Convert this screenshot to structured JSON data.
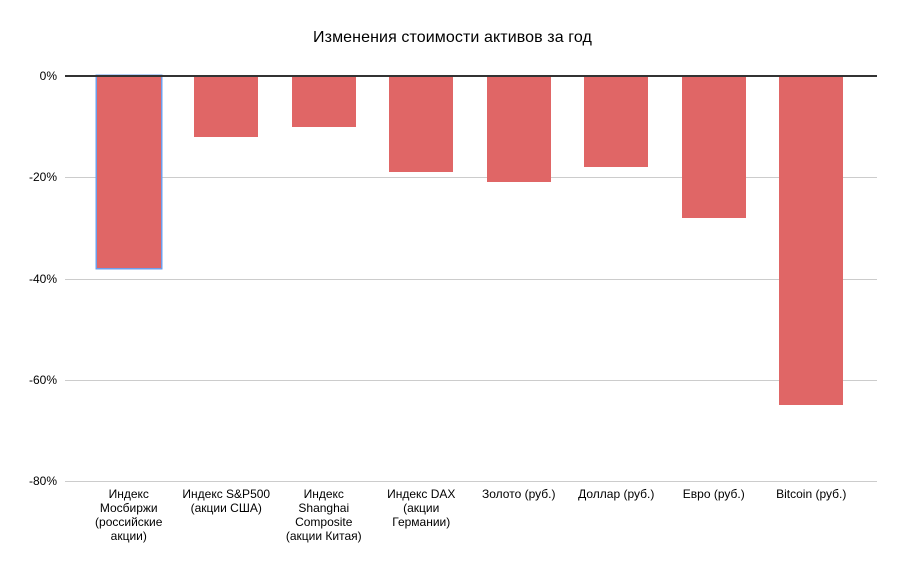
{
  "chart_data": {
    "type": "bar",
    "title": "Изменения стоимости активов за год",
    "categories": [
      "Индекс Мосбиржи (российские акции)",
      "Индекс S&P500 (акции США)",
      "Индекс Shanghai Composite (акции Китая)",
      "Индекс DAX (акции Германии)",
      "Золото (руб.)",
      "Доллар (руб.)",
      "Евро (руб.)",
      "Bitcoin (руб.)"
    ],
    "values": [
      -38,
      -12,
      -10,
      -19,
      -21,
      -18,
      -28,
      -65
    ],
    "unit": "%",
    "xlabel": "",
    "ylabel": "",
    "ylim": [
      -80,
      0
    ],
    "y_ticks": [
      "0%",
      "-20%",
      "-40%",
      "-60%",
      "-80%"
    ],
    "y_tick_values": [
      0,
      -20,
      -40,
      -60,
      -80
    ],
    "grid": true,
    "legend_position": "none",
    "bar_color": "#e06666",
    "highlighted_bar_index": 0,
    "highlight_outline_color": "#6d9eeb",
    "axis_line_color": "#333333",
    "gridline_color": "#cccccc",
    "text_color": "#000000",
    "background_color": "#ffffff"
  }
}
